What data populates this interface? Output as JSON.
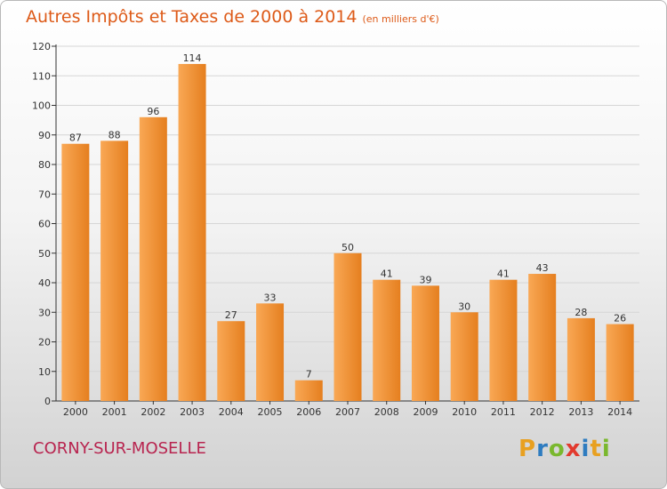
{
  "header": {
    "title": "Autres Impôts et Taxes de 2000 à 2014",
    "subtitle": "(en milliers d'€)"
  },
  "footer": {
    "city": "CORNY-SUR-MOSELLE",
    "logo_letters": [
      "P",
      "r",
      "o",
      "x",
      "i",
      "t",
      "i"
    ],
    "logo_colors": [
      "#e8a020",
      "#2e7cc0",
      "#7ab82e",
      "#e23a2e",
      "#2e7cc0",
      "#e8a020",
      "#7ab82e"
    ]
  },
  "colors": {
    "bar_light": "#f9a855",
    "bar_dark": "#e57f1f",
    "axis": "#333333",
    "grid": "#d6d6d6"
  },
  "chart_data": {
    "type": "bar",
    "categories": [
      "2000",
      "2001",
      "2002",
      "2003",
      "2004",
      "2005",
      "2006",
      "2007",
      "2008",
      "2009",
      "2010",
      "2011",
      "2012",
      "2013",
      "2014"
    ],
    "values": [
      87,
      88,
      96,
      114,
      27,
      33,
      7,
      50,
      41,
      39,
      30,
      41,
      43,
      28,
      26
    ],
    "yticks": [
      0,
      10,
      20,
      30,
      40,
      50,
      60,
      70,
      80,
      90,
      100,
      110,
      120
    ],
    "ylim": [
      0,
      120
    ],
    "grid": true,
    "legend": "none"
  }
}
